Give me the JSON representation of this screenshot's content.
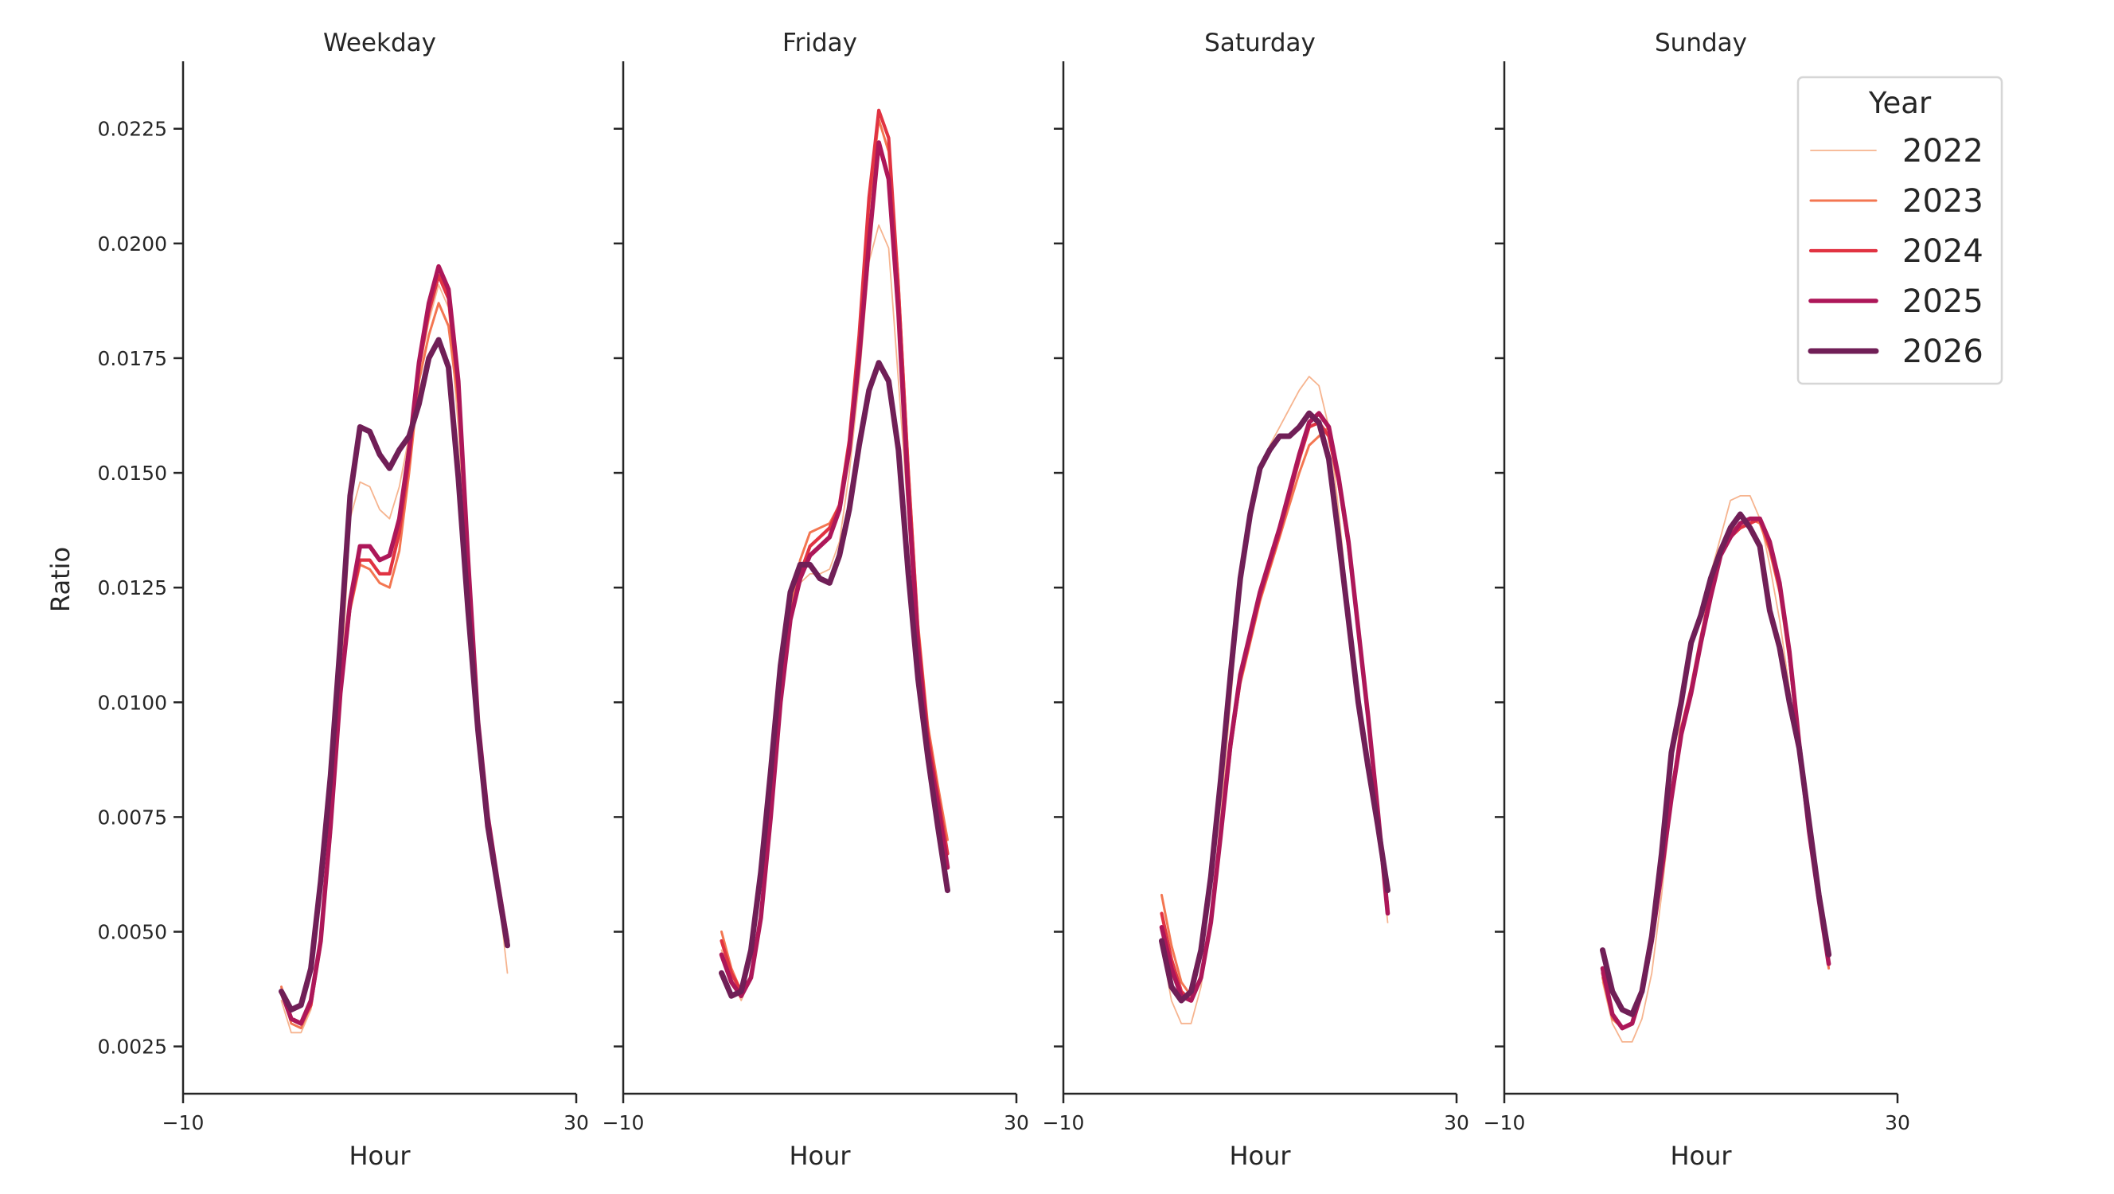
{
  "figure": {
    "legend": {
      "title": "Year",
      "placement": "top-right",
      "entries": [
        {
          "label": "2022",
          "color": "#f6b48f"
        },
        {
          "label": "2023",
          "color": "#f37651"
        },
        {
          "label": "2024",
          "color": "#e13342"
        },
        {
          "label": "2025",
          "color": "#ad1759"
        },
        {
          "label": "2026",
          "color": "#701f57"
        }
      ]
    },
    "y_tick_labels": [
      "0.0025",
      "0.0050",
      "0.0075",
      "0.0100",
      "0.0125",
      "0.0150",
      "0.0175",
      "0.0200",
      "0.0225"
    ],
    "x_tick_labels": [
      "−10",
      "30"
    ]
  },
  "chart_data": [
    {
      "type": "line",
      "title": "Weekday",
      "xlabel": "Hour",
      "ylabel": "Ratio",
      "xlim": [
        -10,
        30
      ],
      "ylim": [
        0.00147,
        0.02397
      ],
      "grid": false,
      "x_ticks": [
        -10,
        30
      ],
      "y_ticks": [
        0.0025,
        0.005,
        0.0075,
        0.01,
        0.0125,
        0.015,
        0.0175,
        0.02,
        0.0225
      ],
      "x": [
        0,
        1,
        2,
        3,
        4,
        5,
        6,
        7,
        8,
        9,
        10,
        11,
        12,
        13,
        14,
        15,
        16,
        17,
        18,
        19,
        20,
        21,
        22,
        23
      ],
      "series": [
        {
          "name": "2022",
          "values": [
            0.0035,
            0.0028,
            0.0028,
            0.0033,
            0.0046,
            0.007,
            0.01,
            0.014,
            0.0148,
            0.0147,
            0.0142,
            0.014,
            0.0147,
            0.0158,
            0.0172,
            0.0183,
            0.0191,
            0.0186,
            0.016,
            0.0125,
            0.0095,
            0.0075,
            0.006,
            0.0041
          ]
        },
        {
          "name": "2023",
          "values": [
            0.0038,
            0.003,
            0.0029,
            0.0034,
            0.0047,
            0.0072,
            0.0101,
            0.012,
            0.013,
            0.0129,
            0.0126,
            0.0125,
            0.0133,
            0.015,
            0.017,
            0.018,
            0.0187,
            0.0182,
            0.0165,
            0.013,
            0.0096,
            0.0076,
            0.0061,
            0.0047
          ]
        },
        {
          "name": "2024",
          "values": [
            0.0037,
            0.0031,
            0.003,
            0.0034,
            0.0048,
            0.0072,
            0.0102,
            0.0121,
            0.0131,
            0.0131,
            0.0128,
            0.0128,
            0.0137,
            0.0153,
            0.0173,
            0.0185,
            0.0193,
            0.0188,
            0.0168,
            0.0131,
            0.0096,
            0.0075,
            0.0061,
            0.0047
          ]
        },
        {
          "name": "2025",
          "values": [
            0.0037,
            0.0031,
            0.003,
            0.0035,
            0.0048,
            0.0073,
            0.0102,
            0.0122,
            0.0134,
            0.0134,
            0.0131,
            0.0132,
            0.014,
            0.0155,
            0.0174,
            0.0187,
            0.0195,
            0.019,
            0.017,
            0.0131,
            0.0096,
            0.0075,
            0.0061,
            0.0048
          ]
        },
        {
          "name": "2026",
          "values": [
            0.0037,
            0.0033,
            0.0034,
            0.0042,
            0.0061,
            0.0084,
            0.0113,
            0.0145,
            0.016,
            0.0159,
            0.0154,
            0.0151,
            0.0155,
            0.0158,
            0.0165,
            0.0175,
            0.0179,
            0.0173,
            0.0149,
            0.012,
            0.0094,
            0.0073,
            0.006,
            0.0047
          ]
        }
      ]
    },
    {
      "type": "line",
      "title": "Friday",
      "xlabel": "Hour",
      "xlim": [
        -10,
        30
      ],
      "ylim": [
        0.00147,
        0.02397
      ],
      "grid": false,
      "x_ticks": [
        -10,
        30
      ],
      "x": [
        0,
        1,
        2,
        3,
        4,
        5,
        6,
        7,
        8,
        9,
        10,
        11,
        12,
        13,
        14,
        15,
        16,
        17,
        18,
        19,
        20,
        21,
        22,
        23
      ],
      "series": [
        {
          "name": "2022",
          "values": [
            0.0046,
            0.004,
            0.0035,
            0.004,
            0.0053,
            0.0075,
            0.01,
            0.0118,
            0.0126,
            0.0128,
            0.0128,
            0.0129,
            0.0135,
            0.015,
            0.017,
            0.0196,
            0.0204,
            0.0199,
            0.017,
            0.014,
            0.0112,
            0.0092,
            0.008,
            0.0068
          ]
        },
        {
          "name": "2023",
          "values": [
            0.005,
            0.0042,
            0.0037,
            0.004,
            0.0053,
            0.0075,
            0.01,
            0.012,
            0.0131,
            0.0137,
            0.0138,
            0.0139,
            0.0143,
            0.0157,
            0.018,
            0.0208,
            0.0227,
            0.022,
            0.0192,
            0.0152,
            0.0117,
            0.0095,
            0.0082,
            0.007
          ]
        },
        {
          "name": "2024",
          "values": [
            0.0048,
            0.0041,
            0.0037,
            0.004,
            0.0053,
            0.0075,
            0.01,
            0.0118,
            0.0128,
            0.0134,
            0.0136,
            0.0138,
            0.0143,
            0.0157,
            0.018,
            0.021,
            0.0229,
            0.0223,
            0.019,
            0.015,
            0.0115,
            0.0093,
            0.008,
            0.0067
          ]
        },
        {
          "name": "2025",
          "values": [
            0.0045,
            0.0039,
            0.0036,
            0.004,
            0.0053,
            0.0075,
            0.01,
            0.0118,
            0.0127,
            0.0132,
            0.0134,
            0.0136,
            0.0142,
            0.0155,
            0.0175,
            0.02,
            0.0222,
            0.0214,
            0.0185,
            0.0145,
            0.0112,
            0.009,
            0.0078,
            0.0064
          ]
        },
        {
          "name": "2026",
          "values": [
            0.0041,
            0.0036,
            0.0037,
            0.0046,
            0.0063,
            0.0085,
            0.0108,
            0.0124,
            0.013,
            0.013,
            0.0127,
            0.0126,
            0.0132,
            0.0142,
            0.0156,
            0.0168,
            0.0174,
            0.017,
            0.0155,
            0.0128,
            0.0105,
            0.0088,
            0.0073,
            0.0059
          ]
        }
      ]
    },
    {
      "type": "line",
      "title": "Saturday",
      "xlabel": "Hour",
      "xlim": [
        -10,
        30
      ],
      "ylim": [
        0.00147,
        0.02397
      ],
      "grid": false,
      "x_ticks": [
        -10,
        30
      ],
      "x": [
        0,
        1,
        2,
        3,
        4,
        5,
        6,
        7,
        8,
        9,
        10,
        11,
        12,
        13,
        14,
        15,
        16,
        17,
        18,
        19,
        20,
        21,
        22,
        23
      ],
      "series": [
        {
          "name": "2022",
          "values": [
            0.0047,
            0.0035,
            0.003,
            0.003,
            0.0038,
            0.0053,
            0.0075,
            0.01,
            0.0125,
            0.0141,
            0.0151,
            0.0156,
            0.016,
            0.0164,
            0.0168,
            0.0171,
            0.0169,
            0.016,
            0.0142,
            0.012,
            0.01,
            0.0087,
            0.0072,
            0.0052
          ]
        },
        {
          "name": "2023",
          "values": [
            0.0058,
            0.0047,
            0.0039,
            0.0036,
            0.004,
            0.0052,
            0.007,
            0.009,
            0.0104,
            0.0113,
            0.0122,
            0.0129,
            0.0136,
            0.0143,
            0.015,
            0.0156,
            0.0158,
            0.016,
            0.015,
            0.0135,
            0.0117,
            0.0098,
            0.0077,
            0.0056
          ]
        },
        {
          "name": "2024",
          "values": [
            0.0054,
            0.0044,
            0.0037,
            0.0035,
            0.004,
            0.0052,
            0.0071,
            0.009,
            0.0105,
            0.0114,
            0.0123,
            0.013,
            0.0137,
            0.0145,
            0.0153,
            0.016,
            0.0161,
            0.0158,
            0.0148,
            0.0134,
            0.0116,
            0.0097,
            0.0076,
            0.0055
          ]
        },
        {
          "name": "2025",
          "values": [
            0.0051,
            0.0042,
            0.0036,
            0.0035,
            0.004,
            0.0052,
            0.0071,
            0.0091,
            0.0106,
            0.0115,
            0.0124,
            0.0131,
            0.0138,
            0.0146,
            0.0154,
            0.0161,
            0.0163,
            0.016,
            0.0149,
            0.0135,
            0.0116,
            0.0097,
            0.0076,
            0.0054
          ]
        },
        {
          "name": "2026",
          "values": [
            0.0048,
            0.0038,
            0.0035,
            0.0037,
            0.0046,
            0.0062,
            0.0083,
            0.0106,
            0.0127,
            0.0141,
            0.0151,
            0.0155,
            0.0158,
            0.0158,
            0.016,
            0.0163,
            0.0161,
            0.0153,
            0.0136,
            0.0118,
            0.01,
            0.0086,
            0.0073,
            0.0059
          ]
        }
      ]
    },
    {
      "type": "line",
      "title": "Sunday",
      "xlabel": "Hour",
      "xlim": [
        -10,
        30
      ],
      "ylim": [
        0.00147,
        0.02397
      ],
      "grid": false,
      "x_ticks": [
        -10,
        30
      ],
      "x": [
        0,
        1,
        2,
        3,
        4,
        5,
        6,
        7,
        8,
        9,
        10,
        11,
        12,
        13,
        14,
        15,
        16,
        17,
        18,
        19,
        20,
        21,
        22,
        23
      ],
      "series": [
        {
          "name": "2022",
          "values": [
            0.0039,
            0.003,
            0.0026,
            0.0026,
            0.0031,
            0.0041,
            0.0058,
            0.0078,
            0.0098,
            0.0112,
            0.012,
            0.0128,
            0.0136,
            0.0144,
            0.0145,
            0.0145,
            0.014,
            0.013,
            0.0118,
            0.0103,
            0.0088,
            0.0072,
            0.0057,
            0.0042
          ]
        },
        {
          "name": "2023",
          "values": [
            0.004,
            0.0031,
            0.0029,
            0.003,
            0.0036,
            0.0047,
            0.0062,
            0.0079,
            0.0093,
            0.0103,
            0.0114,
            0.0125,
            0.0133,
            0.0137,
            0.0139,
            0.014,
            0.0139,
            0.0133,
            0.0124,
            0.0109,
            0.009,
            0.0072,
            0.0056,
            0.0042
          ]
        },
        {
          "name": "2024",
          "values": [
            0.0041,
            0.0032,
            0.0029,
            0.003,
            0.0037,
            0.0048,
            0.0063,
            0.008,
            0.0094,
            0.0103,
            0.0114,
            0.0124,
            0.0132,
            0.0136,
            0.0138,
            0.0139,
            0.014,
            0.0134,
            0.0125,
            0.011,
            0.009,
            0.0072,
            0.0057,
            0.0043
          ]
        },
        {
          "name": "2025",
          "values": [
            0.0042,
            0.0032,
            0.0029,
            0.003,
            0.0037,
            0.0048,
            0.0063,
            0.0079,
            0.0093,
            0.0102,
            0.0113,
            0.0123,
            0.0132,
            0.0136,
            0.0139,
            0.014,
            0.014,
            0.0135,
            0.0126,
            0.0111,
            0.0091,
            0.0072,
            0.0057,
            0.0043
          ]
        },
        {
          "name": "2026",
          "values": [
            0.0046,
            0.0037,
            0.0033,
            0.0032,
            0.0037,
            0.0049,
            0.0067,
            0.0089,
            0.01,
            0.0113,
            0.0119,
            0.0127,
            0.0133,
            0.0138,
            0.0141,
            0.0138,
            0.0134,
            0.012,
            0.0112,
            0.01,
            0.009,
            0.0074,
            0.0058,
            0.0045
          ]
        }
      ]
    }
  ]
}
